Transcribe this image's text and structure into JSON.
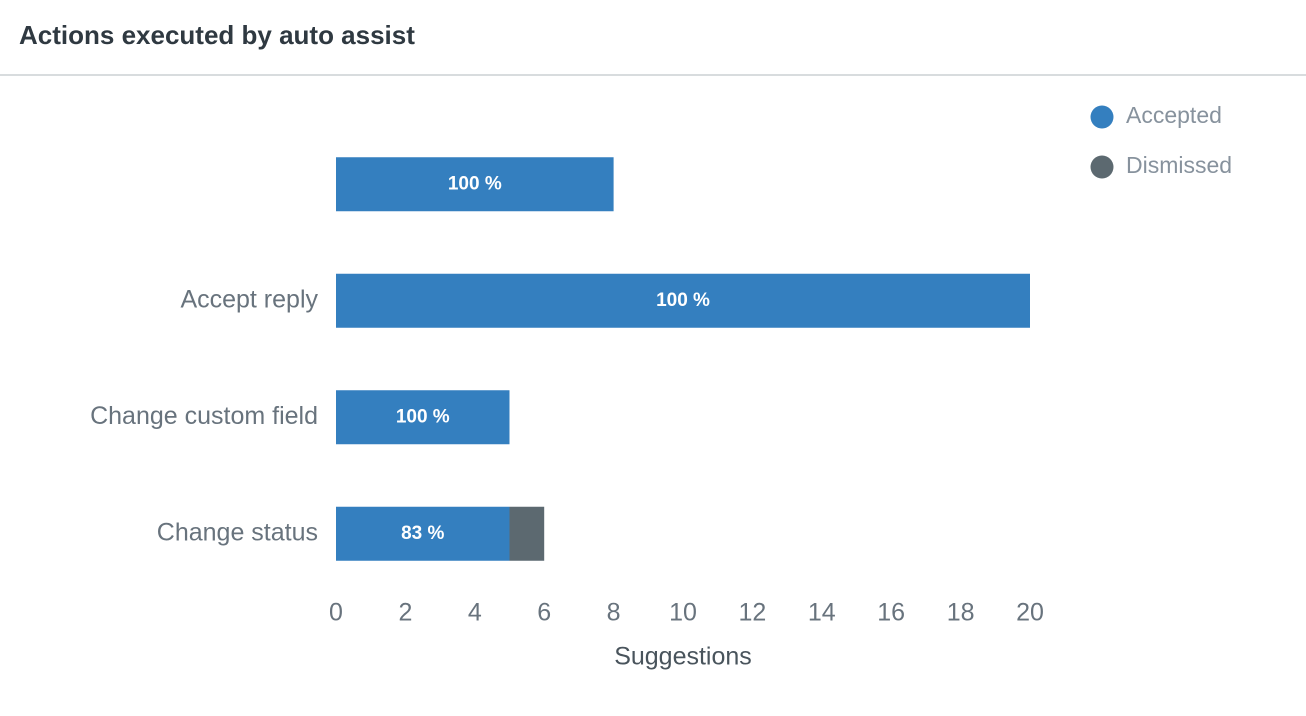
{
  "header": {
    "title": "Actions executed by auto assist"
  },
  "chart_data": {
    "type": "stacked-barh",
    "categories": [
      null,
      "Accept reply",
      "Change custom field",
      "Change status"
    ],
    "series": [
      {
        "name": "Accepted",
        "color": "#347fbf",
        "values": [
          8,
          20,
          5,
          5
        ]
      },
      {
        "name": "Dismissed",
        "color": "#5c6970",
        "values": [
          0,
          0,
          0,
          1
        ]
      }
    ],
    "percent_labels": [
      "100 %",
      "100 %",
      "100 %",
      "83 %"
    ],
    "xlabel": "Suggestions",
    "xlim": [
      0,
      20
    ],
    "xticks": [
      0,
      2,
      4,
      6,
      8,
      10,
      12,
      14,
      16,
      18,
      20
    ],
    "legend": "top-right"
  }
}
